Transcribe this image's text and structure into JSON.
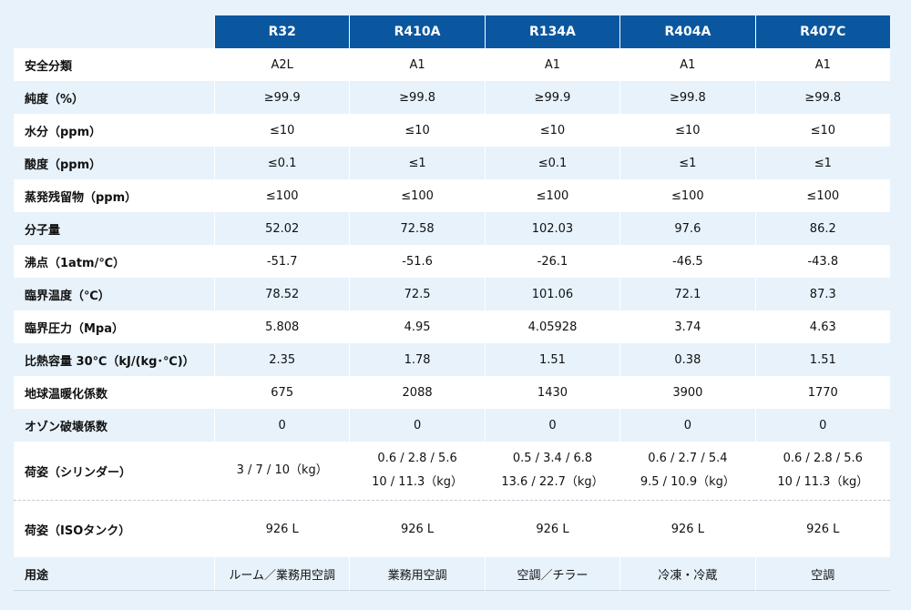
{
  "refrigerants": [
    "R32",
    "R410A",
    "R134A",
    "R404A",
    "R407C"
  ],
  "rows": [
    {
      "label": "安全分類",
      "values": [
        "A2L",
        "A1",
        "A1",
        "A1",
        "A1"
      ]
    },
    {
      "label": "純度（%）",
      "values": [
        "≥99.9",
        "≥99.8",
        "≥99.9",
        "≥99.8",
        "≥99.8"
      ]
    },
    {
      "label": "水分（ppm）",
      "values": [
        "≤10",
        "≤10",
        "≤10",
        "≤10",
        "≤10"
      ]
    },
    {
      "label": "酸度（ppm）",
      "values": [
        "≤0.1",
        "≤1",
        "≤0.1",
        "≤1",
        "≤1"
      ]
    },
    {
      "label": "蒸発残留物（ppm）",
      "values": [
        "≤100",
        "≤100",
        "≤100",
        "≤100",
        "≤100"
      ]
    },
    {
      "label": "分子量",
      "values": [
        "52.02",
        "72.58",
        "102.03",
        "97.6",
        "86.2"
      ]
    },
    {
      "label": "沸点（1atm/℃）",
      "values": [
        "-51.7",
        "-51.6",
        "-26.1",
        "-46.5",
        "-43.8"
      ]
    },
    {
      "label": "臨界温度（℃）",
      "values": [
        "78.52",
        "72.5",
        "101.06",
        "72.1",
        "87.3"
      ]
    },
    {
      "label": "臨界圧力（Mpa）",
      "values": [
        "5.808",
        "4.95",
        "4.05928",
        "3.74",
        "4.63"
      ]
    },
    {
      "label": "比熱容量 30℃（kJ/(kg･℃)）",
      "values": [
        "2.35",
        "1.78",
        "1.51",
        "0.38",
        "1.51"
      ]
    },
    {
      "label": "地球温暖化係数",
      "values": [
        "675",
        "2088",
        "1430",
        "3900",
        "1770"
      ]
    },
    {
      "label": "オゾン破壊係数",
      "values": [
        "0",
        "0",
        "0",
        "0",
        "0"
      ]
    }
  ],
  "cylinder_row": {
    "label": "荷姿（シリンダー）",
    "values": [
      [
        "3 / 7 / 10（kg）"
      ],
      [
        "0.6 / 2.8 / 5.6",
        "10 / 11.3（kg）"
      ],
      [
        "0.5 / 3.4 / 6.8",
        "13.6 / 22.7（kg）"
      ],
      [
        "0.6 / 2.7 / 5.4",
        "9.5 / 10.9（kg）"
      ],
      [
        "0.6 / 2.8 / 5.6",
        "10 / 11.3（kg）"
      ]
    ]
  },
  "iso_row": {
    "label": "荷姿（ISOタンク）",
    "values": [
      "926 L",
      "926 L",
      "926 L",
      "926 L",
      "926 L"
    ]
  },
  "usage_row": {
    "label": "用途",
    "values": [
      "ルーム／業務用空調",
      "業務用空調",
      "空調／チラー",
      "冷凍・冷蔵",
      "空調"
    ]
  }
}
